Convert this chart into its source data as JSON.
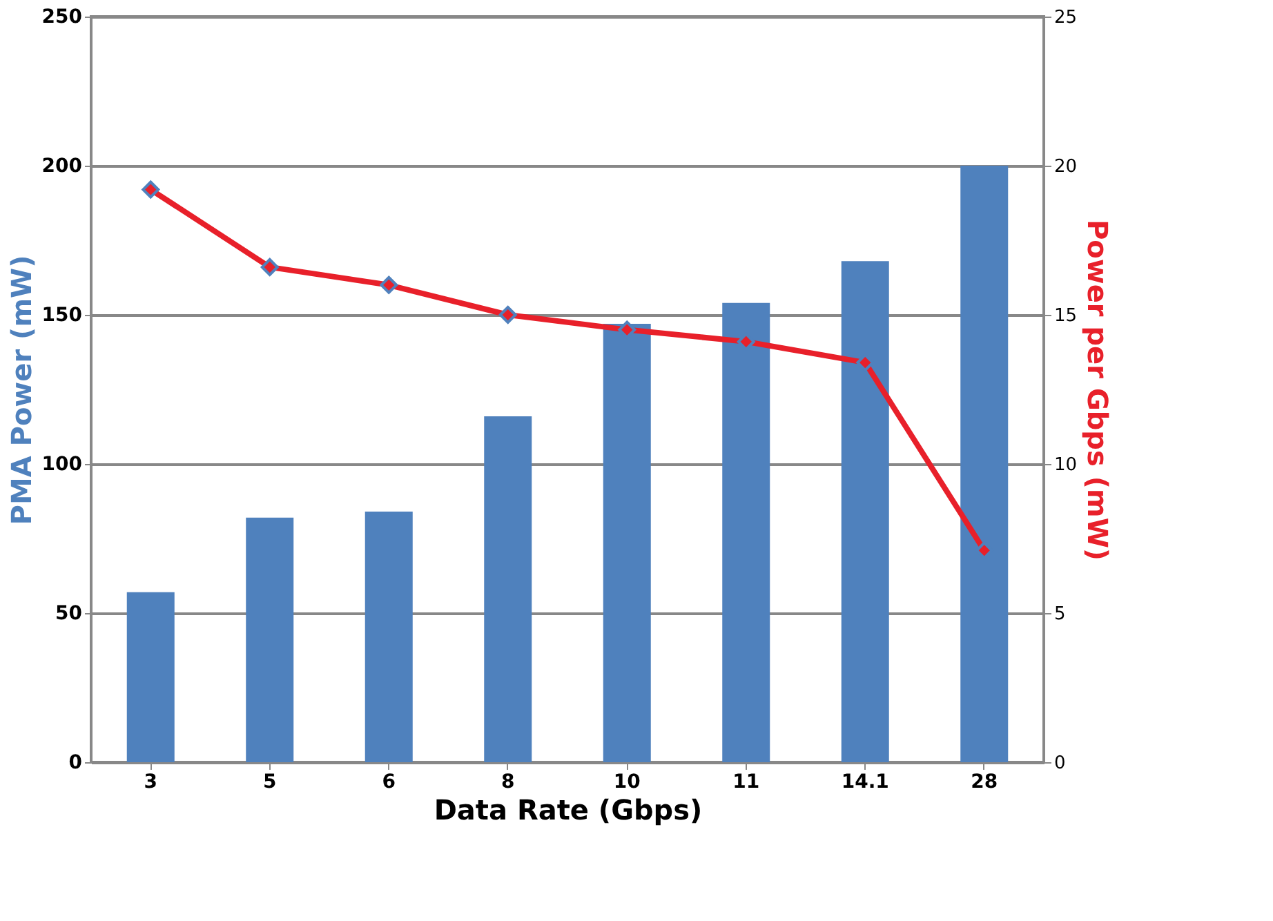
{
  "chart_data": {
    "type": "bar",
    "xlabel": "Data Rate (Gbps)",
    "ylabel": "PMA Power (mW)",
    "y2label": "Power per Gbps (mW)",
    "categories": [
      "3",
      "5",
      "6",
      "8",
      "10",
      "11",
      "14.1",
      "28"
    ],
    "series": [
      {
        "color": "#4f81bd",
        "values": [
          57,
          82,
          84,
          116,
          147,
          154,
          168,
          200
        ]
      },
      {
        "type": "line",
        "axis": "y2",
        "color": "#e8202a",
        "marker": "diamond",
        "values": [
          19.2,
          16.6,
          16.0,
          15.0,
          14.5,
          14.1,
          13.4,
          7.1
        ]
      }
    ],
    "ylim": [
      0,
      250
    ],
    "yticks": [
      0,
      50,
      100,
      150,
      200,
      250
    ],
    "y2lim": [
      0,
      25
    ],
    "y2ticks": [
      0,
      5,
      10,
      15,
      20,
      25
    ],
    "grid": "y"
  }
}
